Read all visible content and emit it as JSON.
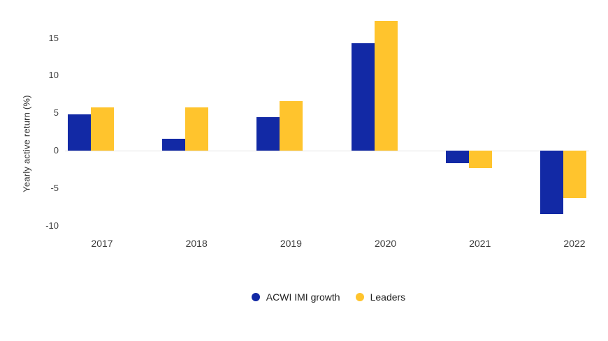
{
  "chart_data": {
    "type": "bar",
    "title": "",
    "categories": [
      "2017",
      "2018",
      "2019",
      "2020",
      "2021",
      "2022"
    ],
    "series": [
      {
        "name": "ACWI IMI growth",
        "color": "#1229a5",
        "values": [
          4.8,
          1.6,
          4.5,
          14.3,
          -1.7,
          -8.5
        ]
      },
      {
        "name": "Leaders",
        "color": "#ffc42d",
        "values": [
          5.8,
          5.8,
          6.6,
          17.3,
          -2.3,
          -6.3
        ]
      }
    ],
    "xlabel": "",
    "ylabel": "Yearly active return (%)",
    "yticks": [
      15,
      10,
      5,
      0,
      -5,
      -10
    ],
    "ylim": [
      -10.5,
      18.5
    ],
    "grid": "zero-line-only",
    "legend_position": "bottom",
    "colors": {
      "axis_text": "#424242",
      "zero_line": "#e3e3e3",
      "background": "#ffffff"
    }
  }
}
